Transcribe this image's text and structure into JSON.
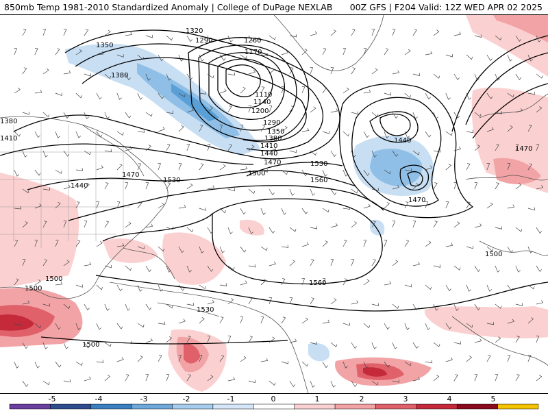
{
  "header": {
    "left": "850mb Temp 1981-2010 Standardized Anomaly | College of DuPage NEXLAB",
    "right": "00Z GFS | F204 Valid: 12Z WED APR 02 2025"
  },
  "contour_labels": [
    "1320",
    "1290",
    "1350",
    "1260",
    "1170",
    "1380",
    "1110",
    "1140",
    "1200",
    "1290",
    "1350",
    "1380",
    "1410",
    "1440",
    "1470",
    "1380",
    "1410",
    "1470",
    "1440",
    "1530",
    "1500",
    "1560",
    "1530",
    "1440",
    "1470",
    "1470",
    "1500",
    "1560",
    "1500",
    "1500",
    "1530",
    "1500"
  ],
  "colorbar": {
    "labels": [
      "-5",
      "-4",
      "-3",
      "-2",
      "-1",
      "0",
      "1",
      "2",
      "3",
      "4",
      "5"
    ],
    "colors": [
      "#6a3fa0",
      "#2e4c8f",
      "#3a7fc0",
      "#6fa9dc",
      "#a6cdee",
      "#d4e6f7",
      "#ffffff",
      "#fbd0d0",
      "#f2a3a6",
      "#e0616a",
      "#c42a3a",
      "#8c0a1e",
      "#f5c400"
    ]
  }
}
